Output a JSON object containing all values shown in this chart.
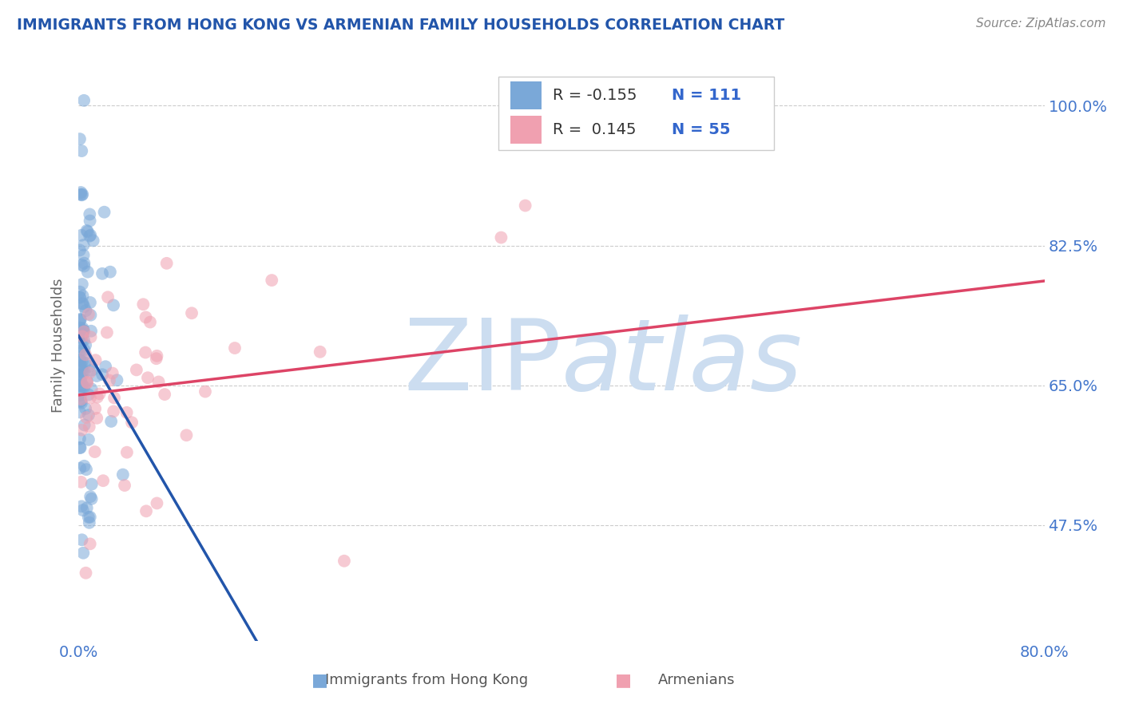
{
  "title": "IMMIGRANTS FROM HONG KONG VS ARMENIAN FAMILY HOUSEHOLDS CORRELATION CHART",
  "source": "Source: ZipAtlas.com",
  "ylabel": "Family Households",
  "legend_label1": "Immigrants from Hong Kong",
  "legend_label2": "Armenians",
  "R1": -0.155,
  "N1": 111,
  "R2": 0.145,
  "N2": 55,
  "xmin": 0.0,
  "xmax": 0.8,
  "ymin": 0.33,
  "ymax": 1.07,
  "yticks": [
    0.475,
    0.65,
    0.825,
    1.0
  ],
  "ytick_labels": [
    "47.5%",
    "65.0%",
    "82.5%",
    "100.0%"
  ],
  "xtick_left_label": "0.0%",
  "xtick_right_label": "80.0%",
  "color_blue": "#7aa8d8",
  "color_pink": "#f0a0b0",
  "trendline_blue": "#2255aa",
  "trendline_pink": "#dd4466",
  "trendline_dashed": "#aaccee",
  "background_color": "#ffffff",
  "watermark_color": "#ccddf0",
  "title_color": "#2255aa",
  "source_color": "#888888",
  "ylabel_color": "#666666",
  "ytick_color": "#4477cc",
  "xtick_color": "#4477cc",
  "grid_color": "#cccccc",
  "legend_border_color": "#cccccc",
  "legend_text_color": "#333333",
  "legend_r_color": "#3366cc",
  "legend_n_color": "#3366cc"
}
